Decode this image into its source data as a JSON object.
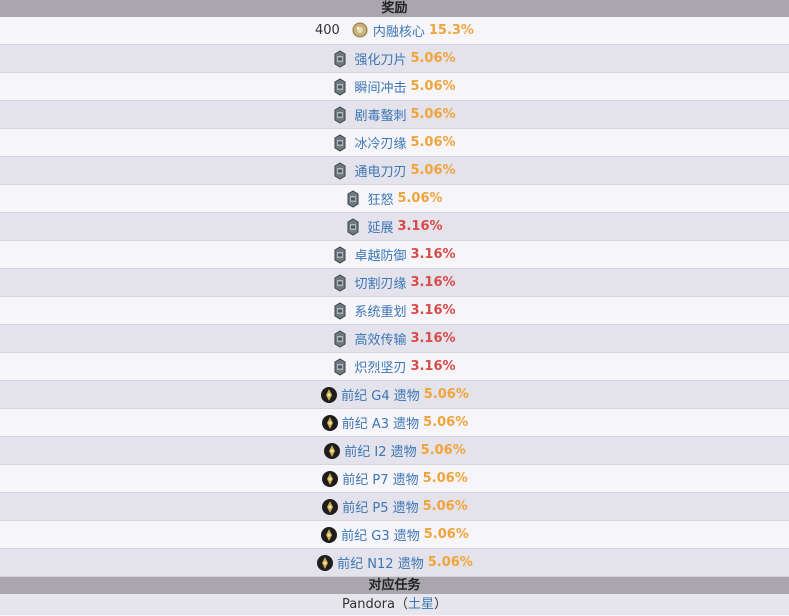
{
  "rewards_header": "奖励",
  "core_row": {
    "quantity": "400",
    "icon": "fusion-core-icon",
    "name": "内融核心",
    "percent": "15.3%"
  },
  "mod_rows": [
    {
      "name": "强化刀片",
      "percent": "5.06%",
      "level": "orange"
    },
    {
      "name": "瞬间冲击",
      "percent": "5.06%",
      "level": "orange"
    },
    {
      "name": "剧毒螯刺",
      "percent": "5.06%",
      "level": "orange"
    },
    {
      "name": "冰冷刃缘",
      "percent": "5.06%",
      "level": "orange"
    },
    {
      "name": "通电刀刃",
      "percent": "5.06%",
      "level": "orange"
    },
    {
      "name": "狂怒",
      "percent": "5.06%",
      "level": "orange"
    },
    {
      "name": "延展",
      "percent": "3.16%",
      "level": "red"
    },
    {
      "name": "卓越防御",
      "percent": "3.16%",
      "level": "red"
    },
    {
      "name": "切割刃缘",
      "percent": "3.16%",
      "level": "red"
    },
    {
      "name": "系统重划",
      "percent": "3.16%",
      "level": "red"
    },
    {
      "name": "高效传输",
      "percent": "3.16%",
      "level": "red"
    },
    {
      "name": "炽烈坚刃",
      "percent": "3.16%",
      "level": "red"
    }
  ],
  "relic_rows": [
    {
      "name": "前纪 G4 遗物",
      "percent": "5.06%"
    },
    {
      "name": "前纪 A3 遗物",
      "percent": "5.06%"
    },
    {
      "name": "前纪 I2 遗物",
      "percent": "5.06%"
    },
    {
      "name": "前纪 P7 遗物",
      "percent": "5.06%"
    },
    {
      "name": "前纪 P5 遗物",
      "percent": "5.06%"
    },
    {
      "name": "前纪 G3 遗物",
      "percent": "5.06%"
    },
    {
      "name": "前纪 N12 遗物",
      "percent": "5.06%"
    }
  ],
  "mission_header": "对应任务",
  "mission": {
    "node": "Pandora",
    "open_paren": "（",
    "planet": "土星",
    "close_paren": "）"
  },
  "colors": {
    "link": "#3c76b5",
    "orange": "#f0a43b",
    "red": "#d94a4a",
    "header_bg": "#a9a7ad"
  }
}
